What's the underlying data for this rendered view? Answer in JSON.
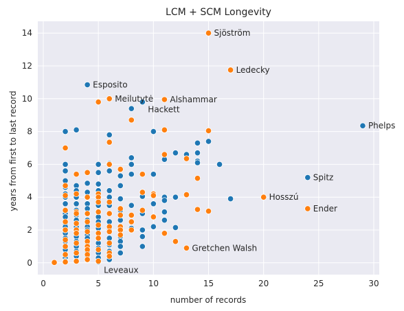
{
  "chart_data": {
    "type": "scatter",
    "title": "LCM + SCM Longevity",
    "xlabel": "number of records",
    "ylabel": "years from first to last record",
    "xlim": [
      -0.5,
      30.5
    ],
    "ylim": [
      -0.72,
      14.72
    ],
    "xticks": [
      0,
      5,
      10,
      15,
      20,
      25,
      30
    ],
    "yticks": [
      0,
      2,
      4,
      6,
      8,
      10,
      12,
      14
    ],
    "grid": true,
    "background_color": "#eaeaf2",
    "series": [
      {
        "color": "#1f77b4",
        "points": [
          [
            2,
            8.0
          ],
          [
            3,
            8.1
          ],
          [
            4,
            10.85
          ],
          [
            6,
            7.8
          ],
          [
            8,
            9.4
          ],
          [
            8,
            6.4
          ],
          [
            9,
            9.8
          ],
          [
            10,
            8.0
          ],
          [
            11,
            6.3
          ],
          [
            12,
            6.7
          ],
          [
            13,
            6.6
          ],
          [
            14,
            7.3
          ],
          [
            14,
            6.7
          ],
          [
            14,
            6.2
          ],
          [
            14,
            6.1
          ],
          [
            15,
            7.4
          ],
          [
            16,
            6.0
          ],
          [
            17,
            3.9
          ],
          [
            24,
            5.2
          ],
          [
            29,
            8.35
          ],
          [
            2,
            6.0
          ],
          [
            2,
            5.6
          ],
          [
            2,
            5.0
          ],
          [
            2,
            4.6
          ],
          [
            2,
            4.2
          ],
          [
            2,
            4.0
          ],
          [
            2,
            3.6
          ],
          [
            2,
            3.2
          ],
          [
            2,
            3.0
          ],
          [
            2,
            2.8
          ],
          [
            2,
            2.4
          ],
          [
            2,
            2.2
          ],
          [
            2,
            2.0
          ],
          [
            2,
            1.8
          ],
          [
            2,
            1.5
          ],
          [
            2,
            1.3
          ],
          [
            2,
            1.0
          ],
          [
            2,
            0.8
          ],
          [
            2,
            0.5
          ],
          [
            2,
            0.3
          ],
          [
            2,
            0.1
          ],
          [
            3,
            4.7
          ],
          [
            3,
            4.4
          ],
          [
            3,
            4.0
          ],
          [
            3,
            3.6
          ],
          [
            3,
            3.2
          ],
          [
            3,
            2.9
          ],
          [
            3,
            2.6
          ],
          [
            3,
            2.2
          ],
          [
            3,
            1.9
          ],
          [
            3,
            1.6
          ],
          [
            3,
            1.3
          ],
          [
            3,
            1.0
          ],
          [
            3,
            0.7
          ],
          [
            3,
            0.4
          ],
          [
            3,
            0.1
          ],
          [
            4,
            4.85
          ],
          [
            4,
            4.3
          ],
          [
            4,
            4.0
          ],
          [
            4,
            3.6
          ],
          [
            4,
            3.3
          ],
          [
            4,
            3.0
          ],
          [
            4,
            2.6
          ],
          [
            4,
            2.2
          ],
          [
            4,
            2.0
          ],
          [
            4,
            1.7
          ],
          [
            4,
            1.5
          ],
          [
            4,
            1.2
          ],
          [
            4,
            1.0
          ],
          [
            4,
            0.7
          ],
          [
            4,
            0.4
          ],
          [
            4,
            0.2
          ],
          [
            5,
            6.0
          ],
          [
            5,
            5.5
          ],
          [
            5,
            4.8
          ],
          [
            5,
            4.4
          ],
          [
            5,
            3.9
          ],
          [
            5,
            3.5
          ],
          [
            5,
            3.1
          ],
          [
            5,
            2.8
          ],
          [
            5,
            2.5
          ],
          [
            5,
            2.1
          ],
          [
            5,
            1.8
          ],
          [
            5,
            1.5
          ],
          [
            5,
            1.2
          ],
          [
            5,
            0.9
          ],
          [
            5,
            0.6
          ],
          [
            5,
            0.3
          ],
          [
            5,
            0.05
          ],
          [
            6,
            6.05
          ],
          [
            6,
            5.6
          ],
          [
            6,
            4.4
          ],
          [
            6,
            4.0
          ],
          [
            6,
            3.5
          ],
          [
            6,
            3.0
          ],
          [
            6,
            2.5
          ],
          [
            6,
            2.0
          ],
          [
            6,
            1.5
          ],
          [
            6,
            1.1
          ],
          [
            6,
            0.7
          ],
          [
            6,
            0.2
          ],
          [
            7,
            5.3
          ],
          [
            7,
            4.7
          ],
          [
            7,
            3.9
          ],
          [
            7,
            3.2
          ],
          [
            7,
            2.6
          ],
          [
            7,
            2.0
          ],
          [
            7,
            1.6
          ],
          [
            7,
            1.3
          ],
          [
            7,
            1.0
          ],
          [
            7,
            0.6
          ],
          [
            8,
            6.0
          ],
          [
            8,
            5.4
          ],
          [
            8,
            3.5
          ],
          [
            8,
            2.1
          ],
          [
            9,
            4.3
          ],
          [
            9,
            4.05
          ],
          [
            9,
            3.15
          ],
          [
            9,
            3.0
          ],
          [
            9,
            2.0
          ],
          [
            9,
            1.6
          ],
          [
            9,
            1.0
          ],
          [
            10,
            5.4
          ],
          [
            10,
            4.1
          ],
          [
            10,
            3.6
          ],
          [
            10,
            2.2
          ],
          [
            11,
            4.0
          ],
          [
            11,
            3.8
          ],
          [
            11,
            3.1
          ],
          [
            11,
            2.6
          ],
          [
            12,
            4.0
          ],
          [
            12,
            2.15
          ]
        ]
      },
      {
        "color": "#ff7f0e",
        "points": [
          [
            1,
            0.02
          ],
          [
            2,
            7.0
          ],
          [
            2,
            4.7
          ],
          [
            2,
            4.1
          ],
          [
            2,
            3.2
          ],
          [
            2,
            2.5
          ],
          [
            2,
            2.0
          ],
          [
            2,
            1.4
          ],
          [
            2,
            1.0
          ],
          [
            2,
            0.5
          ],
          [
            2,
            0.05
          ],
          [
            3,
            5.4
          ],
          [
            3,
            4.2
          ],
          [
            3,
            3.1
          ],
          [
            3,
            3.0
          ],
          [
            3,
            2.4
          ],
          [
            3,
            2.0
          ],
          [
            3,
            1.8
          ],
          [
            3,
            1.2
          ],
          [
            3,
            0.6
          ],
          [
            3,
            0.1
          ],
          [
            4,
            5.5
          ],
          [
            4,
            4.0
          ],
          [
            4,
            3.0
          ],
          [
            4,
            2.5
          ],
          [
            4,
            1.9
          ],
          [
            4,
            1.3
          ],
          [
            4,
            1.0
          ],
          [
            4,
            0.8
          ],
          [
            4,
            0.5
          ],
          [
            4,
            0.2
          ],
          [
            5,
            9.8
          ],
          [
            5,
            4.2
          ],
          [
            5,
            4.0
          ],
          [
            5,
            3.7
          ],
          [
            5,
            3.1
          ],
          [
            5,
            2.3
          ],
          [
            5,
            1.8
          ],
          [
            5,
            1.5
          ],
          [
            5,
            0.8
          ],
          [
            5,
            0.1
          ],
          [
            6,
            10.0
          ],
          [
            6,
            7.35
          ],
          [
            6,
            6.0
          ],
          [
            6,
            3.7
          ],
          [
            6,
            3.0
          ],
          [
            6,
            2.2
          ],
          [
            6,
            1.9
          ],
          [
            6,
            1.2
          ],
          [
            6,
            0.6
          ],
          [
            6,
            0.4
          ],
          [
            7,
            5.7
          ],
          [
            7,
            3.3
          ],
          [
            7,
            2.9
          ],
          [
            7,
            2.2
          ],
          [
            7,
            2.0
          ],
          [
            7,
            1.7
          ],
          [
            8,
            8.7
          ],
          [
            8,
            2.9
          ],
          [
            8,
            2.5
          ],
          [
            8,
            2.0
          ],
          [
            9,
            5.4
          ],
          [
            9,
            4.3
          ],
          [
            9,
            3.2
          ],
          [
            10,
            4.2
          ],
          [
            10,
            4.1
          ],
          [
            10,
            2.8
          ],
          [
            11,
            9.95
          ],
          [
            11,
            8.1
          ],
          [
            11,
            6.6
          ],
          [
            11,
            1.8
          ],
          [
            12,
            1.3
          ],
          [
            13,
            6.35
          ],
          [
            13,
            4.15
          ],
          [
            13,
            0.9
          ],
          [
            14,
            5.15
          ],
          [
            14,
            3.25
          ],
          [
            15,
            14.0
          ],
          [
            15,
            8.05
          ],
          [
            15,
            3.15
          ],
          [
            17,
            11.75
          ],
          [
            20,
            4.0
          ],
          [
            24,
            3.3
          ]
        ]
      }
    ],
    "annotations": [
      {
        "text": "Sjöström",
        "x": 15,
        "y": 14.0
      },
      {
        "text": "Ledecky",
        "x": 17,
        "y": 11.75
      },
      {
        "text": "Esposito",
        "x": 4,
        "y": 10.85
      },
      {
        "text": "Meilutytė",
        "x": 6,
        "y": 10.0
      },
      {
        "text": "Alshammar",
        "x": 11,
        "y": 9.95
      },
      {
        "text": "Hackett",
        "x": 9,
        "y": 9.8
      },
      {
        "text": "Phelps",
        "x": 29,
        "y": 8.35
      },
      {
        "text": "Spitz",
        "x": 24,
        "y": 5.2
      },
      {
        "text": "Hosszú",
        "x": 20,
        "y": 4.0
      },
      {
        "text": "Ender",
        "x": 24,
        "y": 3.3
      },
      {
        "text": "Gretchen Walsh",
        "x": 13,
        "y": 0.9
      },
      {
        "text": "Leveaux",
        "x": 5,
        "y": 0.05
      }
    ]
  }
}
